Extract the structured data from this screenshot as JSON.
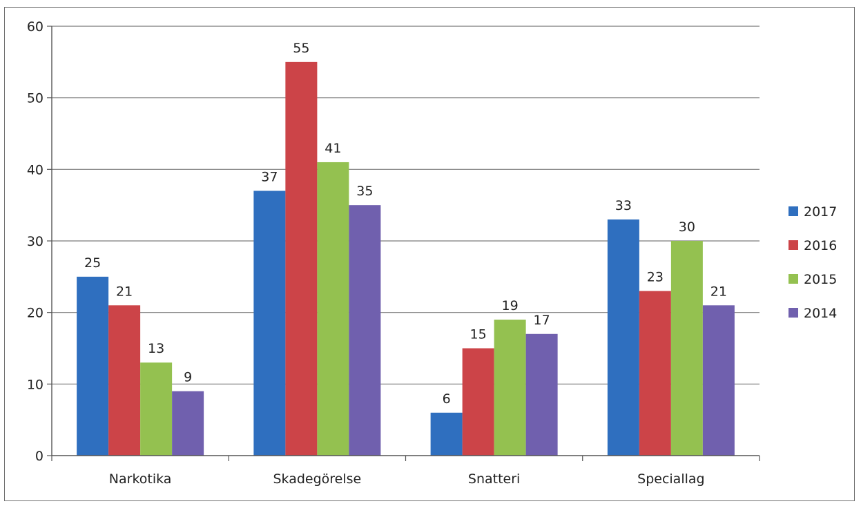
{
  "chart_data": {
    "type": "bar",
    "title": "",
    "xlabel": "",
    "ylabel": "",
    "categories": [
      "Narkotika",
      "Skadegörelse",
      "Snatteri",
      "Speciallag"
    ],
    "series": [
      {
        "name": "2017",
        "color": "#2f6fbf",
        "values": [
          25,
          37,
          6,
          33
        ]
      },
      {
        "name": "2016",
        "color": "#cc4448",
        "values": [
          21,
          55,
          15,
          23
        ]
      },
      {
        "name": "2015",
        "color": "#94c150",
        "values": [
          13,
          41,
          19,
          30
        ]
      },
      {
        "name": "2014",
        "color": "#7060ae",
        "values": [
          9,
          35,
          17,
          21
        ]
      }
    ],
    "ylim": [
      0,
      60
    ],
    "yticks": [
      0,
      10,
      20,
      30,
      40,
      50,
      60
    ],
    "grid": true,
    "legend": "right",
    "data_labels": true
  }
}
